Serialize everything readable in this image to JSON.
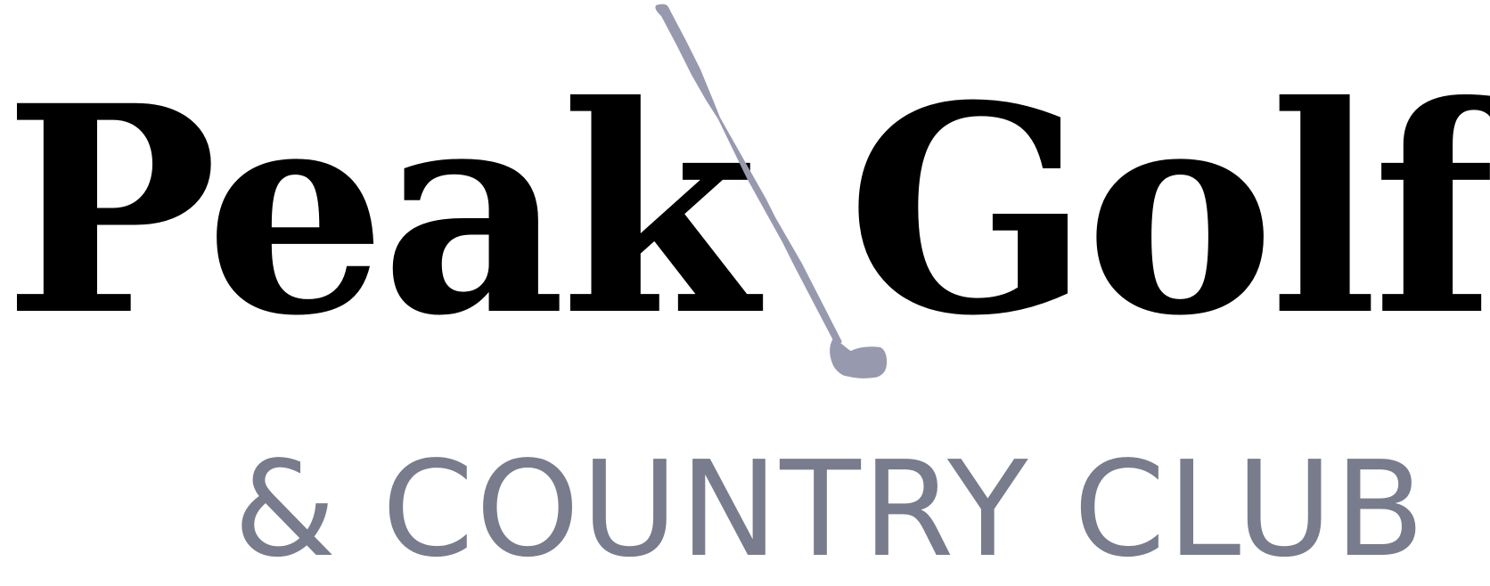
{
  "logo": {
    "word_left": "Peak",
    "word_right": "Golf",
    "tagline": "& COUNTRY CLUB",
    "club_graphic": "golf-club-icon"
  },
  "colors": {
    "wordmark": "#000000",
    "tagline": "#787c8c",
    "club": "#9799ae",
    "background": "#ffffff"
  }
}
